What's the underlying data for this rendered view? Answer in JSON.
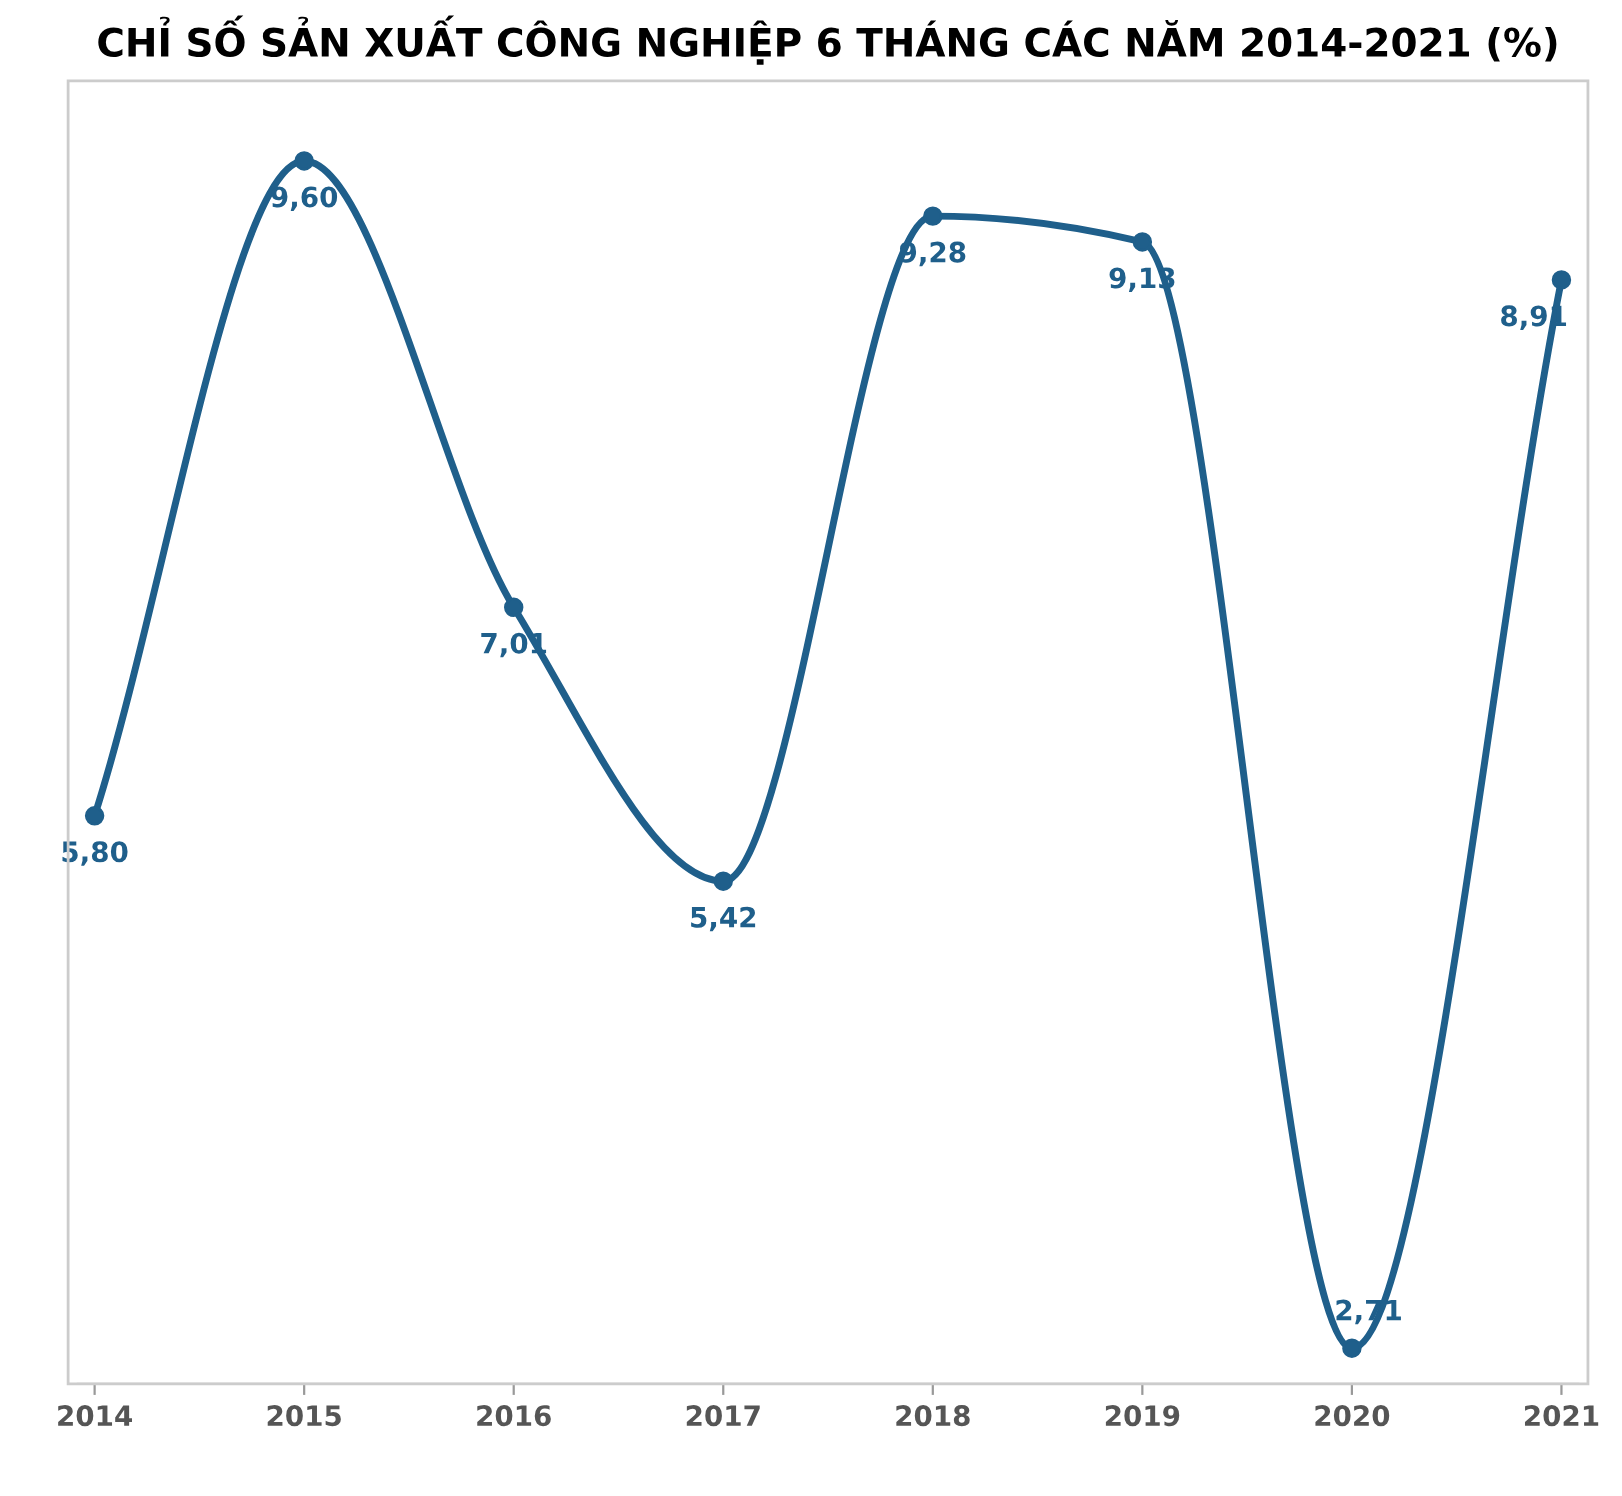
{
  "chart_data": {
    "type": "line",
    "title": "CHỈ SỐ SẢN XUẤT CÔNG NGHIỆP 6 THÁNG CÁC NĂM 2014-2021 (%)",
    "categories": [
      "2014",
      "2015",
      "2016",
      "2017",
      "2018",
      "2019",
      "2020",
      "2021"
    ],
    "series": [
      {
        "color": "#1f5f8b",
        "values": [
          5.8,
          9.6,
          7.01,
          5.42,
          9.28,
          9.13,
          2.71,
          8.91
        ],
        "value_labels": [
          "5,80",
          "9,60",
          "7,01",
          "5,42",
          "9,28",
          "9,13",
          "2,71",
          "8,91"
        ]
      }
    ],
    "marker": "circle",
    "line_style": "solid",
    "grid": false,
    "legend": false,
    "tick_labels": "x"
  }
}
